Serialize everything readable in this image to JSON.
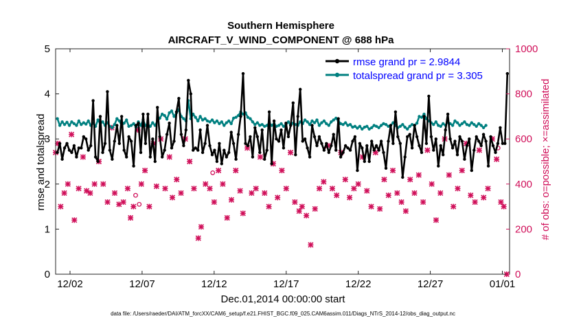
{
  "chart_data": {
    "type": "line",
    "title": "Southern Hemisphere",
    "subtitle": "AIRCRAFT_V_WIND_COMPONENT @ 688 hPa",
    "xlabel": "Dec.01,2014 00:00:00 start",
    "ylabel_left": "rmse and totalspread",
    "ylabel_right": "# of obs: o=possible; ×=assimilated",
    "xlim": [
      0,
      31.5
    ],
    "ylim_left": [
      0,
      5
    ],
    "ylim_right": [
      0,
      1000
    ],
    "x_ticks": [
      {
        "value": 1,
        "label": "12/02"
      },
      {
        "value": 6,
        "label": "12/07"
      },
      {
        "value": 11,
        "label": "12/12"
      },
      {
        "value": 16,
        "label": "12/17"
      },
      {
        "value": 21,
        "label": "12/22"
      },
      {
        "value": 26,
        "label": "12/27"
      },
      {
        "value": 31,
        "label": "01/01"
      }
    ],
    "y_ticks_left": [
      "0",
      "1",
      "2",
      "3",
      "4",
      "5"
    ],
    "y_ticks_right": [
      "0",
      "200",
      "400",
      "600",
      "800",
      "1000"
    ],
    "colors": {
      "rmse": "#000000",
      "totalspread": "#008080",
      "obs": "#d0105a",
      "legend_text": "#0000ff"
    },
    "series": [
      {
        "name": "rmse grand pr = 2.9844",
        "values": [
          2.7,
          2.9,
          2.55,
          2.8,
          2.9,
          2.75,
          2.7,
          2.85,
          2.6,
          2.8,
          2.8,
          3.05,
          3.0,
          2.75,
          2.85,
          3.85,
          2.6,
          2.5,
          3.5,
          2.7,
          2.9,
          4.05,
          2.75,
          2.55,
          2.95,
          3.3,
          2.9,
          3.5,
          2.75,
          2.6,
          3.05,
          2.95,
          2.4,
          3.3,
          3.35,
          2.7,
          3.55,
          2.9,
          3.55,
          2.6,
          3.0,
          2.5,
          3.7,
          3.05,
          2.6,
          2.75,
          3.1,
          3.35,
          2.8,
          2.95,
          3.6,
          3.9,
          3.1,
          2.85,
          3.2,
          4.3,
          4.0,
          2.75,
          2.8,
          2.75,
          3.2,
          2.7,
          2.9,
          3.3,
          2.85,
          2.65,
          2.75,
          2.5,
          2.9,
          2.45,
          2.75,
          2.6,
          2.7,
          3.15,
          2.9,
          2.55,
          3.1,
          3.5,
          4.45,
          2.9,
          2.85,
          3.05,
          2.6,
          3.25,
          3.05,
          2.7,
          3.2,
          2.55,
          2.75,
          3.6,
          2.45,
          3.4,
          3.0,
          2.95,
          3.2,
          2.8,
          3.35,
          3.05,
          3.3,
          3.8,
          2.65,
          3.5,
          4.1,
          2.95,
          3.0,
          2.8,
          2.6,
          3.3,
          3.05,
          2.85,
          3.05,
          2.9,
          2.75,
          2.9,
          2.7,
          2.85,
          3.1,
          2.75,
          3.45,
          2.6,
          2.7,
          2.85,
          2.8,
          2.75,
          2.95,
          3.05,
          2.3,
          2.9,
          2.8,
          2.5,
          2.85,
          2.5,
          2.95,
          2.75,
          2.85,
          2.75,
          2.95,
          2.7,
          2.35,
          2.95,
          3.3,
          2.9,
          3.6,
          3.05,
          2.9,
          2.15,
          2.6,
          3.05,
          3.1,
          2.8,
          3.3,
          3.05,
          2.85,
          2.7,
          3.5,
          2.9,
          3.95,
          3.05,
          2.75,
          3.0,
          2.4,
          2.85,
          2.65,
          3.2,
          3.55,
          3.0,
          2.8,
          2.95,
          2.65,
          3.05,
          2.95,
          2.55,
          2.85,
          3.0,
          2.3,
          2.75,
          3.05,
          2.95,
          2.85,
          3.1,
          2.95,
          2.4,
          3.05,
          2.85,
          2.7,
          2.9,
          3.25,
          2.9,
          2.9,
          4.45
        ],
        "x_start": 0.125,
        "x_step": 0.1652
      },
      {
        "name": "totalspread grand pr = 3.305",
        "values": [
          3.45,
          3.3,
          3.38,
          3.32,
          3.37,
          3.3,
          3.38,
          3.34,
          3.3,
          3.4,
          3.32,
          3.36,
          3.33,
          3.4,
          3.3,
          3.35,
          3.28,
          3.42,
          3.34,
          3.38,
          3.3,
          3.36,
          3.28,
          3.25,
          3.32,
          3.45,
          3.4,
          3.3,
          3.35,
          3.42,
          3.28,
          3.3,
          3.34,
          3.26,
          3.38,
          3.3,
          3.42,
          3.3,
          3.32,
          3.28,
          3.36,
          3.3,
          3.4,
          3.46,
          3.55,
          3.52,
          3.44,
          3.58,
          3.62,
          3.5,
          3.58,
          3.65,
          3.5,
          3.45,
          3.4,
          3.85,
          3.45,
          3.55,
          3.48,
          3.4,
          3.5,
          3.42,
          3.45,
          3.4,
          3.38,
          3.42,
          3.36,
          3.4,
          3.34,
          3.38,
          3.3,
          3.36,
          3.4,
          3.34,
          3.46,
          3.48,
          3.52,
          3.6,
          3.55,
          3.58,
          3.48,
          3.45,
          3.38,
          3.32,
          3.36,
          3.3,
          3.32,
          3.28,
          3.3,
          3.36,
          3.3,
          3.34,
          3.28,
          3.3,
          3.34,
          3.28,
          3.32,
          3.38,
          3.3,
          3.35,
          3.32,
          3.3,
          3.38,
          3.34,
          3.42,
          3.38,
          3.32,
          3.4,
          3.36,
          3.42,
          3.3,
          3.36,
          3.4,
          3.34,
          3.3,
          3.38,
          3.42,
          3.46,
          3.4,
          3.34,
          3.32,
          3.36,
          3.3,
          3.32,
          3.26,
          3.28,
          3.24,
          3.28,
          3.22,
          3.26,
          3.28,
          3.22,
          3.25,
          3.3,
          3.28,
          3.25,
          3.3,
          3.34,
          3.32,
          3.28,
          3.3,
          3.36,
          3.3,
          3.25,
          3.28,
          3.32,
          3.26,
          3.22,
          3.28,
          3.32,
          3.3,
          3.35,
          3.5,
          3.48,
          3.55,
          3.45,
          3.4,
          3.36,
          3.32,
          3.38,
          3.3,
          3.28,
          3.34,
          3.3,
          3.38,
          3.34,
          3.3,
          3.4,
          3.36,
          3.3,
          3.34,
          3.38,
          3.32,
          3.3,
          3.36,
          3.32,
          3.28,
          3.34,
          3.3,
          3.25,
          3.3
        ],
        "x_start": 0.125,
        "x_step": 0.1652
      }
    ],
    "obs_assimilated": [
      [
        0.0,
        540
      ],
      [
        0.15,
        580
      ],
      [
        0.35,
        300
      ],
      [
        0.6,
        360
      ],
      [
        0.85,
        400
      ],
      [
        1.1,
        620
      ],
      [
        1.3,
        240
      ],
      [
        1.6,
        380
      ],
      [
        1.9,
        520
      ],
      [
        2.15,
        370
      ],
      [
        2.4,
        360
      ],
      [
        2.7,
        400
      ],
      [
        3.0,
        500
      ],
      [
        3.3,
        400
      ],
      [
        3.6,
        320
      ],
      [
        3.9,
        650
      ],
      [
        4.1,
        360
      ],
      [
        4.4,
        310
      ],
      [
        4.7,
        320
      ],
      [
        5.0,
        380
      ],
      [
        5.2,
        250
      ],
      [
        5.4,
        300
      ],
      [
        5.7,
        640
      ],
      [
        5.95,
        400
      ],
      [
        6.2,
        460
      ],
      [
        6.5,
        300
      ],
      [
        6.8,
        580
      ],
      [
        7.0,
        390
      ],
      [
        7.3,
        600
      ],
      [
        7.6,
        380
      ],
      [
        7.9,
        520
      ],
      [
        8.1,
        340
      ],
      [
        8.4,
        420
      ],
      [
        8.7,
        360
      ],
      [
        9.0,
        600
      ],
      [
        9.3,
        500
      ],
      [
        9.6,
        380
      ],
      [
        9.9,
        160
      ],
      [
        10.1,
        210
      ],
      [
        10.4,
        400
      ],
      [
        10.7,
        380
      ],
      [
        11.0,
        320
      ],
      [
        11.3,
        460
      ],
      [
        11.6,
        400
      ],
      [
        11.9,
        250
      ],
      [
        12.2,
        330
      ],
      [
        12.5,
        460
      ],
      [
        12.8,
        370
      ],
      [
        13.0,
        270
      ],
      [
        13.3,
        560
      ],
      [
        13.6,
        360
      ],
      [
        13.9,
        380
      ],
      [
        14.2,
        520
      ],
      [
        14.5,
        360
      ],
      [
        14.8,
        300
      ],
      [
        15.1,
        490
      ],
      [
        15.4,
        340
      ],
      [
        15.7,
        460
      ],
      [
        16.0,
        380
      ],
      [
        16.3,
        540
      ],
      [
        16.6,
        320
      ],
      [
        16.9,
        280
      ],
      [
        17.1,
        300
      ],
      [
        17.4,
        260
      ],
      [
        17.7,
        130
      ],
      [
        18.0,
        290
      ],
      [
        18.3,
        380
      ],
      [
        18.6,
        410
      ],
      [
        18.9,
        570
      ],
      [
        19.2,
        380
      ],
      [
        19.5,
        350
      ],
      [
        19.8,
        540
      ],
      [
        20.1,
        420
      ],
      [
        20.4,
        340
      ],
      [
        20.7,
        380
      ],
      [
        21.0,
        400
      ],
      [
        21.3,
        520
      ],
      [
        21.6,
        370
      ],
      [
        21.9,
        300
      ],
      [
        22.2,
        540
      ],
      [
        22.5,
        290
      ],
      [
        22.8,
        420
      ],
      [
        23.1,
        350
      ],
      [
        23.4,
        460
      ],
      [
        23.7,
        360
      ],
      [
        24.0,
        320
      ],
      [
        24.3,
        280
      ],
      [
        24.6,
        420
      ],
      [
        24.9,
        360
      ],
      [
        25.2,
        440
      ],
      [
        25.5,
        320
      ],
      [
        25.8,
        550
      ],
      [
        26.1,
        400
      ],
      [
        26.4,
        240
      ],
      [
        26.7,
        360
      ],
      [
        27.0,
        600
      ],
      [
        27.3,
        440
      ],
      [
        27.6,
        300
      ],
      [
        27.9,
        380
      ],
      [
        28.2,
        460
      ],
      [
        28.5,
        580
      ],
      [
        28.8,
        350
      ],
      [
        29.1,
        320
      ],
      [
        29.4,
        550
      ],
      [
        29.7,
        340
      ],
      [
        30.0,
        380
      ],
      [
        30.3,
        600
      ],
      [
        30.6,
        510
      ],
      [
        30.9,
        320
      ],
      [
        31.1,
        300
      ],
      [
        31.3,
        0
      ]
    ],
    "obs_possible": [
      [
        5.55,
        350
      ],
      [
        5.8,
        310
      ],
      [
        10.9,
        450
      ],
      [
        30.7,
        560
      ]
    ]
  }
}
